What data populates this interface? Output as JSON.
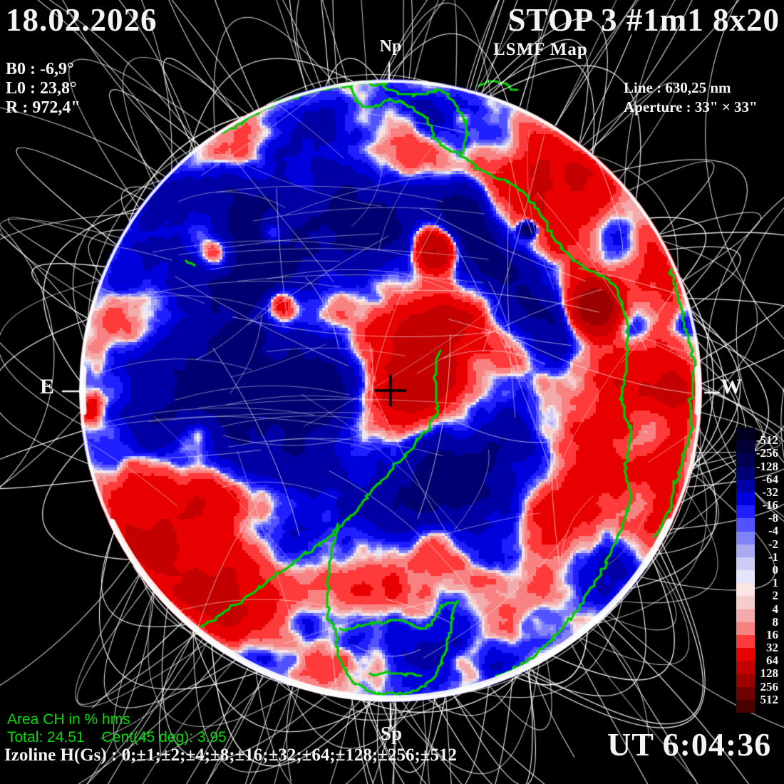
{
  "header": {
    "date": "18.02.2026",
    "title": "STOP 3 #1m1 8x20",
    "subtitle": "LSMF  Map",
    "b0": "B0 : -6,9°",
    "l0": "L0 : 23,8°",
    "r": "R : 972,4\"",
    "line": "Line :  630,25 nm",
    "aperture": "Aperture : 33\" × 33\""
  },
  "compass": {
    "north": "Np",
    "south": "Sp",
    "east": "E",
    "west": "W"
  },
  "footer": {
    "area_label": "Area CH in % hms",
    "area_total": "Total: 24.51",
    "area_cent": "Cent(45 deg): 3.95",
    "izoline": "Izoline H(Gs) : 0;±1;±2;±4;±8;±16;±32;±64;±128;±256;±512",
    "ut": "UT 6:04:36"
  },
  "colorbar": {
    "labels": [
      "-512",
      "-256",
      "-128",
      "-64",
      "-32",
      "-16",
      "-8",
      "-4",
      "-2",
      "-1",
      "0",
      "1",
      "2",
      "4",
      "8",
      "16",
      "32",
      "64",
      "128",
      "256",
      "512"
    ],
    "colors": [
      "#000020",
      "#000034",
      "#00004f",
      "#000073",
      "#0000a4",
      "#0000dd",
      "#1f1fff",
      "#5252ff",
      "#8282f8",
      "#aaaaf2",
      "#ccccf5",
      "#e4e4fa",
      "#fae4e4",
      "#f5cccc",
      "#f2aaaa",
      "#f88282",
      "#ff3a3a",
      "#e80000",
      "#c40000",
      "#9c0000",
      "#700000",
      "#480000"
    ]
  },
  "accent_colors": {
    "contour_green": "#00cc00",
    "stats_green": "#00dd00",
    "field_line_white": "#ffffff",
    "background": "#000000"
  },
  "chart_data": {
    "type": "heatmap",
    "title": "LSMF  Map",
    "instrument": "STOP 3 #1m1 8x20",
    "date": "18.02.2026",
    "time_ut": "6:04:36",
    "observation": {
      "B0_deg": -6.9,
      "L0_deg": 23.8,
      "R_arcsec": 972.4,
      "line_nm": 630.25,
      "aperture_arcsec": "33 × 33"
    },
    "izoline_levels_gs": [
      0,
      1,
      2,
      4,
      8,
      16,
      32,
      64,
      128,
      256,
      512
    ],
    "colorbar": {
      "orientation": "vertical",
      "position": "right",
      "units": "Gs",
      "levels": [
        -512,
        -256,
        -128,
        -64,
        -32,
        -16,
        -8,
        -4,
        -2,
        -1,
        0,
        1,
        2,
        4,
        8,
        16,
        32,
        64,
        128,
        256,
        512
      ],
      "colors": [
        "#000020",
        "#000034",
        "#00004f",
        "#000073",
        "#0000a4",
        "#0000dd",
        "#1f1fff",
        "#5252ff",
        "#8282f8",
        "#aaaaf2",
        "#ccccf5",
        "#e4e4fa",
        "#fae4e4",
        "#f5cccc",
        "#f2aaaa",
        "#f88282",
        "#ff3a3a",
        "#e80000",
        "#c40000",
        "#9c0000",
        "#700000",
        "#480000"
      ],
      "negative_polarity": "blue",
      "positive_polarity": "red"
    },
    "coronal_hole_area": {
      "units": "% hms",
      "total": 24.51,
      "central_45deg": 3.95
    },
    "overlays": {
      "coronal_hole_contours": "green",
      "magnetic_field_lines": "white",
      "disk_center_marker": "black cross"
    }
  }
}
